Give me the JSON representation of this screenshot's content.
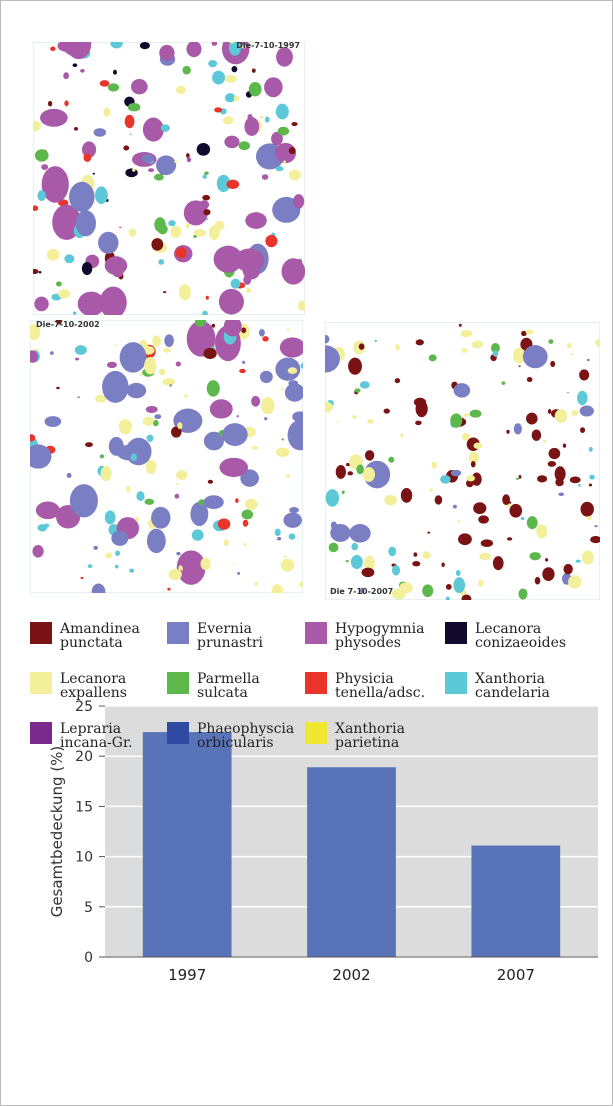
{
  "maps": [
    {
      "label": "Die-7-10-1997"
    },
    {
      "label": "Die-7-10-2002"
    },
    {
      "label": "Die 7-10-2007"
    }
  ],
  "legend": {
    "items": [
      {
        "name": "Amandinea punctata",
        "color": "#7a1414"
      },
      {
        "name": "Evernia prunastri",
        "color": "#7a7fc4"
      },
      {
        "name": "Hypogymnia physodes",
        "color": "#a85aa8"
      },
      {
        "name": "Lecanora conizaeoides",
        "color": "#120a2e"
      },
      {
        "name": "Lecanora expallens",
        "color": "#f4ef9a"
      },
      {
        "name": "Parmella sulcata",
        "color": "#5cb84a"
      },
      {
        "name": "Physicia tenella/adsc.",
        "color": "#e8342a"
      },
      {
        "name": "Xanthoria candelaria",
        "color": "#5cc8d8"
      },
      {
        "name": "Lepraria incana-Gr.",
        "color": "#7a2a8c"
      },
      {
        "name": "Phaeophyscia orbicularis",
        "color": "#2f4aa0"
      },
      {
        "name": "Xanthoria parietina",
        "color": "#f0e830"
      }
    ]
  },
  "chart_data": {
    "type": "bar",
    "ylabel": "Gesamtbedeckung (%)",
    "categories": [
      "1997",
      "2002",
      "2007"
    ],
    "values": [
      22.4,
      18.9,
      11.1
    ],
    "color": "#5873b8",
    "ylim": [
      0,
      25
    ],
    "yticks": [
      0,
      5,
      10,
      15,
      20,
      25
    ],
    "grid": true
  }
}
